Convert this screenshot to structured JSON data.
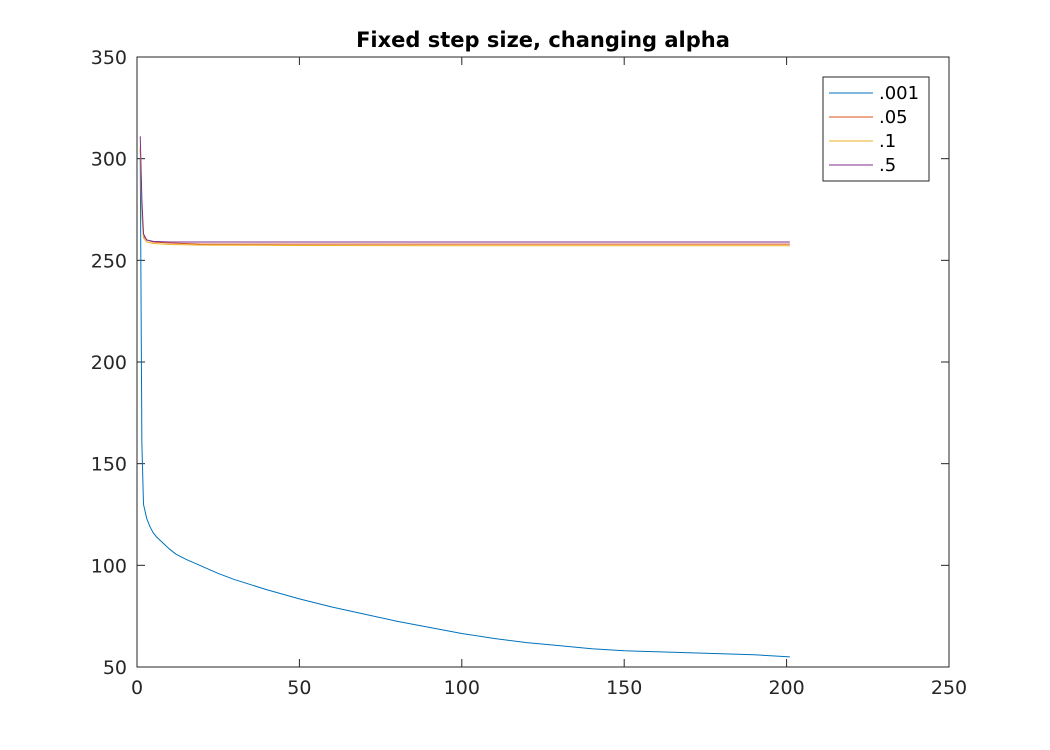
{
  "chart_data": {
    "type": "line",
    "title": "Fixed step size, changing alpha",
    "xlabel": "",
    "ylabel": "",
    "xlim": [
      0,
      250
    ],
    "ylim": [
      50,
      350
    ],
    "xticks": [
      0,
      50,
      100,
      150,
      200,
      250
    ],
    "yticks": [
      50,
      100,
      150,
      200,
      250,
      300,
      350
    ],
    "grid": false,
    "legend_position": "top-right",
    "series": [
      {
        "name": ".001",
        "color": "#0072BD",
        "x": [
          1,
          1.5,
          2,
          3,
          4,
          5,
          6,
          8,
          10,
          12,
          15,
          20,
          25,
          30,
          40,
          50,
          60,
          70,
          80,
          90,
          100,
          110,
          120,
          130,
          140,
          150,
          160,
          170,
          180,
          190,
          201
        ],
        "y": [
          300,
          160,
          130,
          123,
          119,
          116,
          114,
          111,
          108,
          105.5,
          103,
          99.5,
          96,
          93,
          88,
          83.5,
          79.5,
          76,
          72.5,
          69.5,
          66.5,
          64,
          62,
          60.5,
          59,
          58,
          57.5,
          57,
          56.5,
          56,
          55
        ]
      },
      {
        "name": ".05",
        "color": "#D95319",
        "x": [
          1,
          1.5,
          2,
          3,
          5,
          10,
          20,
          30,
          50,
          100,
          150,
          201
        ],
        "y": [
          305,
          275,
          262,
          260,
          259,
          258.5,
          258,
          258,
          258,
          258,
          258,
          258
        ]
      },
      {
        "name": ".1",
        "color": "#EDB120",
        "x": [
          1,
          1.5,
          2,
          3,
          5,
          10,
          20,
          50,
          100,
          150,
          201
        ],
        "y": [
          306,
          272,
          261,
          259,
          258.3,
          257.8,
          257.5,
          257.3,
          257.2,
          257.2,
          257.2
        ]
      },
      {
        "name": ".5",
        "color": "#7E2F8E",
        "x": [
          1,
          1.5,
          2,
          3,
          5,
          10,
          20,
          50,
          100,
          150,
          201
        ],
        "y": [
          311,
          280,
          263,
          260,
          259.3,
          259,
          259,
          259,
          259,
          259,
          259
        ]
      }
    ]
  }
}
